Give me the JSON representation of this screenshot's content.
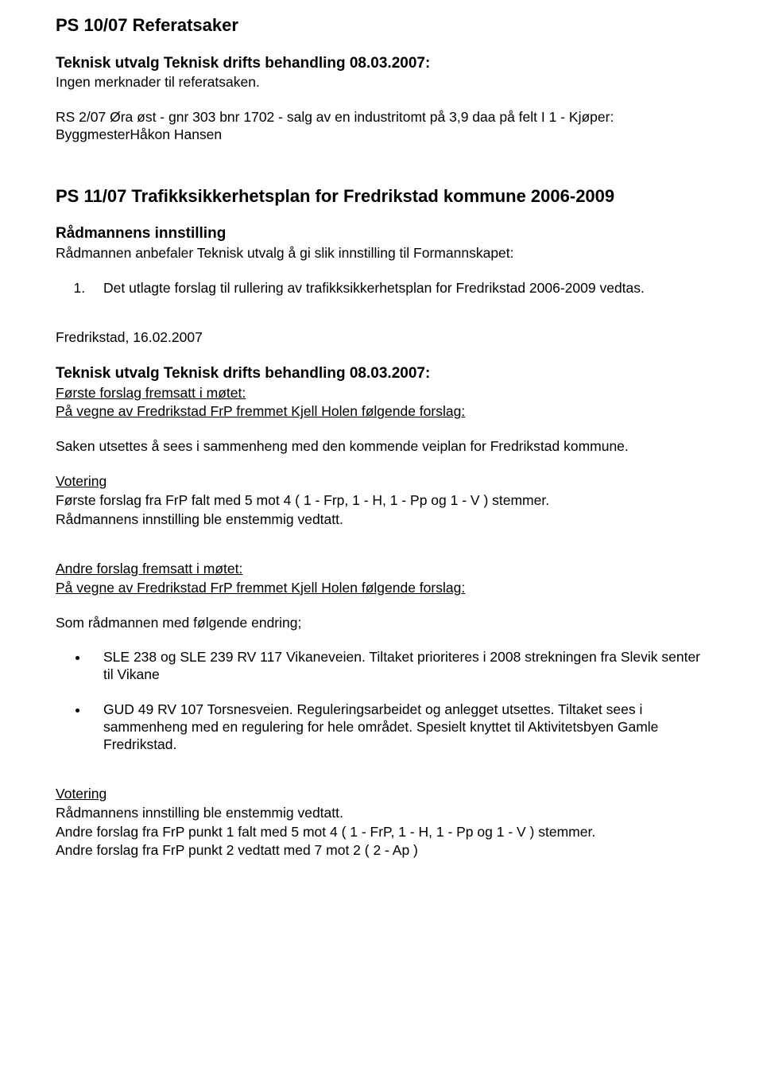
{
  "ps10": {
    "title": "PS 10/07 Referatsaker",
    "meeting_line": "Teknisk utvalg Teknisk drifts behandling 08.03.2007:",
    "intro": "Ingen merknader til referatsaken.",
    "rs": "RS 2/07 Øra øst - gnr 303 bnr 1702 - salg av en industritomt på 3,9 daa på felt I 1 - Kjøper: ByggmesterHåkon Hansen"
  },
  "ps11": {
    "title": "PS 11/07 Trafikksikkerhetsplan for Fredrikstad kommune 2006-2009",
    "innstilling_label": "Rådmannens innstilling",
    "innstilling_body": "Rådmannen anbefaler Teknisk utvalg å gi slik innstilling til Formannskapet:",
    "list_item_1": "Det utlagte forslag til rullering av trafikksikkerhetsplan for Fredrikstad 2006-2009 vedtas.",
    "date": "Fredrikstad, 16.02.2007",
    "meeting_line": "Teknisk utvalg Teknisk drifts behandling 08.03.2007:",
    "first_proposal_label": "Første forslag fremsatt i møtet:",
    "first_proposal_by": "På vegne av Fredrikstad FrP fremmet Kjell Holen følgende forslag:",
    "first_proposal_text": "Saken utsettes å sees i sammenheng med den kommende veiplan for Fredrikstad kommune.",
    "votering_label": "Votering",
    "votering1_line1": "Første forslag fra FrP falt med 5 mot 4 ( 1 - Frp, 1 - H, 1 - Pp og 1 - V ) stemmer.",
    "votering1_line2": "Rådmannens innstilling ble enstemmig vedtatt.",
    "second_proposal_label": "Andre forslag fremsatt i møtet:",
    "second_proposal_by": "På vegne av Fredrikstad FrP fremmet Kjell Holen følgende forslag:",
    "second_proposal_text": "Som rådmannen med følgende endring;",
    "bullet1": "SLE 238 og SLE 239 RV 117 Vikaneveien. Tiltaket prioriteres i 2008 strekningen fra Slevik senter til Vikane",
    "bullet2": "GUD 49 RV 107 Torsnesveien. Reguleringsarbeidet og anlegget utsettes. Tiltaket sees i sammenheng med en regulering for hele området. Spesielt knyttet til Aktivitetsbyen Gamle Fredrikstad.",
    "votering2_line1": "Rådmannens innstilling ble enstemmig vedtatt.",
    "votering2_line2": "Andre forslag fra FrP punkt 1 falt med 5 mot 4 ( 1 - FrP, 1 - H, 1 - Pp og 1 - V ) stemmer.",
    "votering2_line3": "Andre forslag fra FrP punkt 2 vedtatt med 7 mot 2 (  2 - Ap )"
  }
}
